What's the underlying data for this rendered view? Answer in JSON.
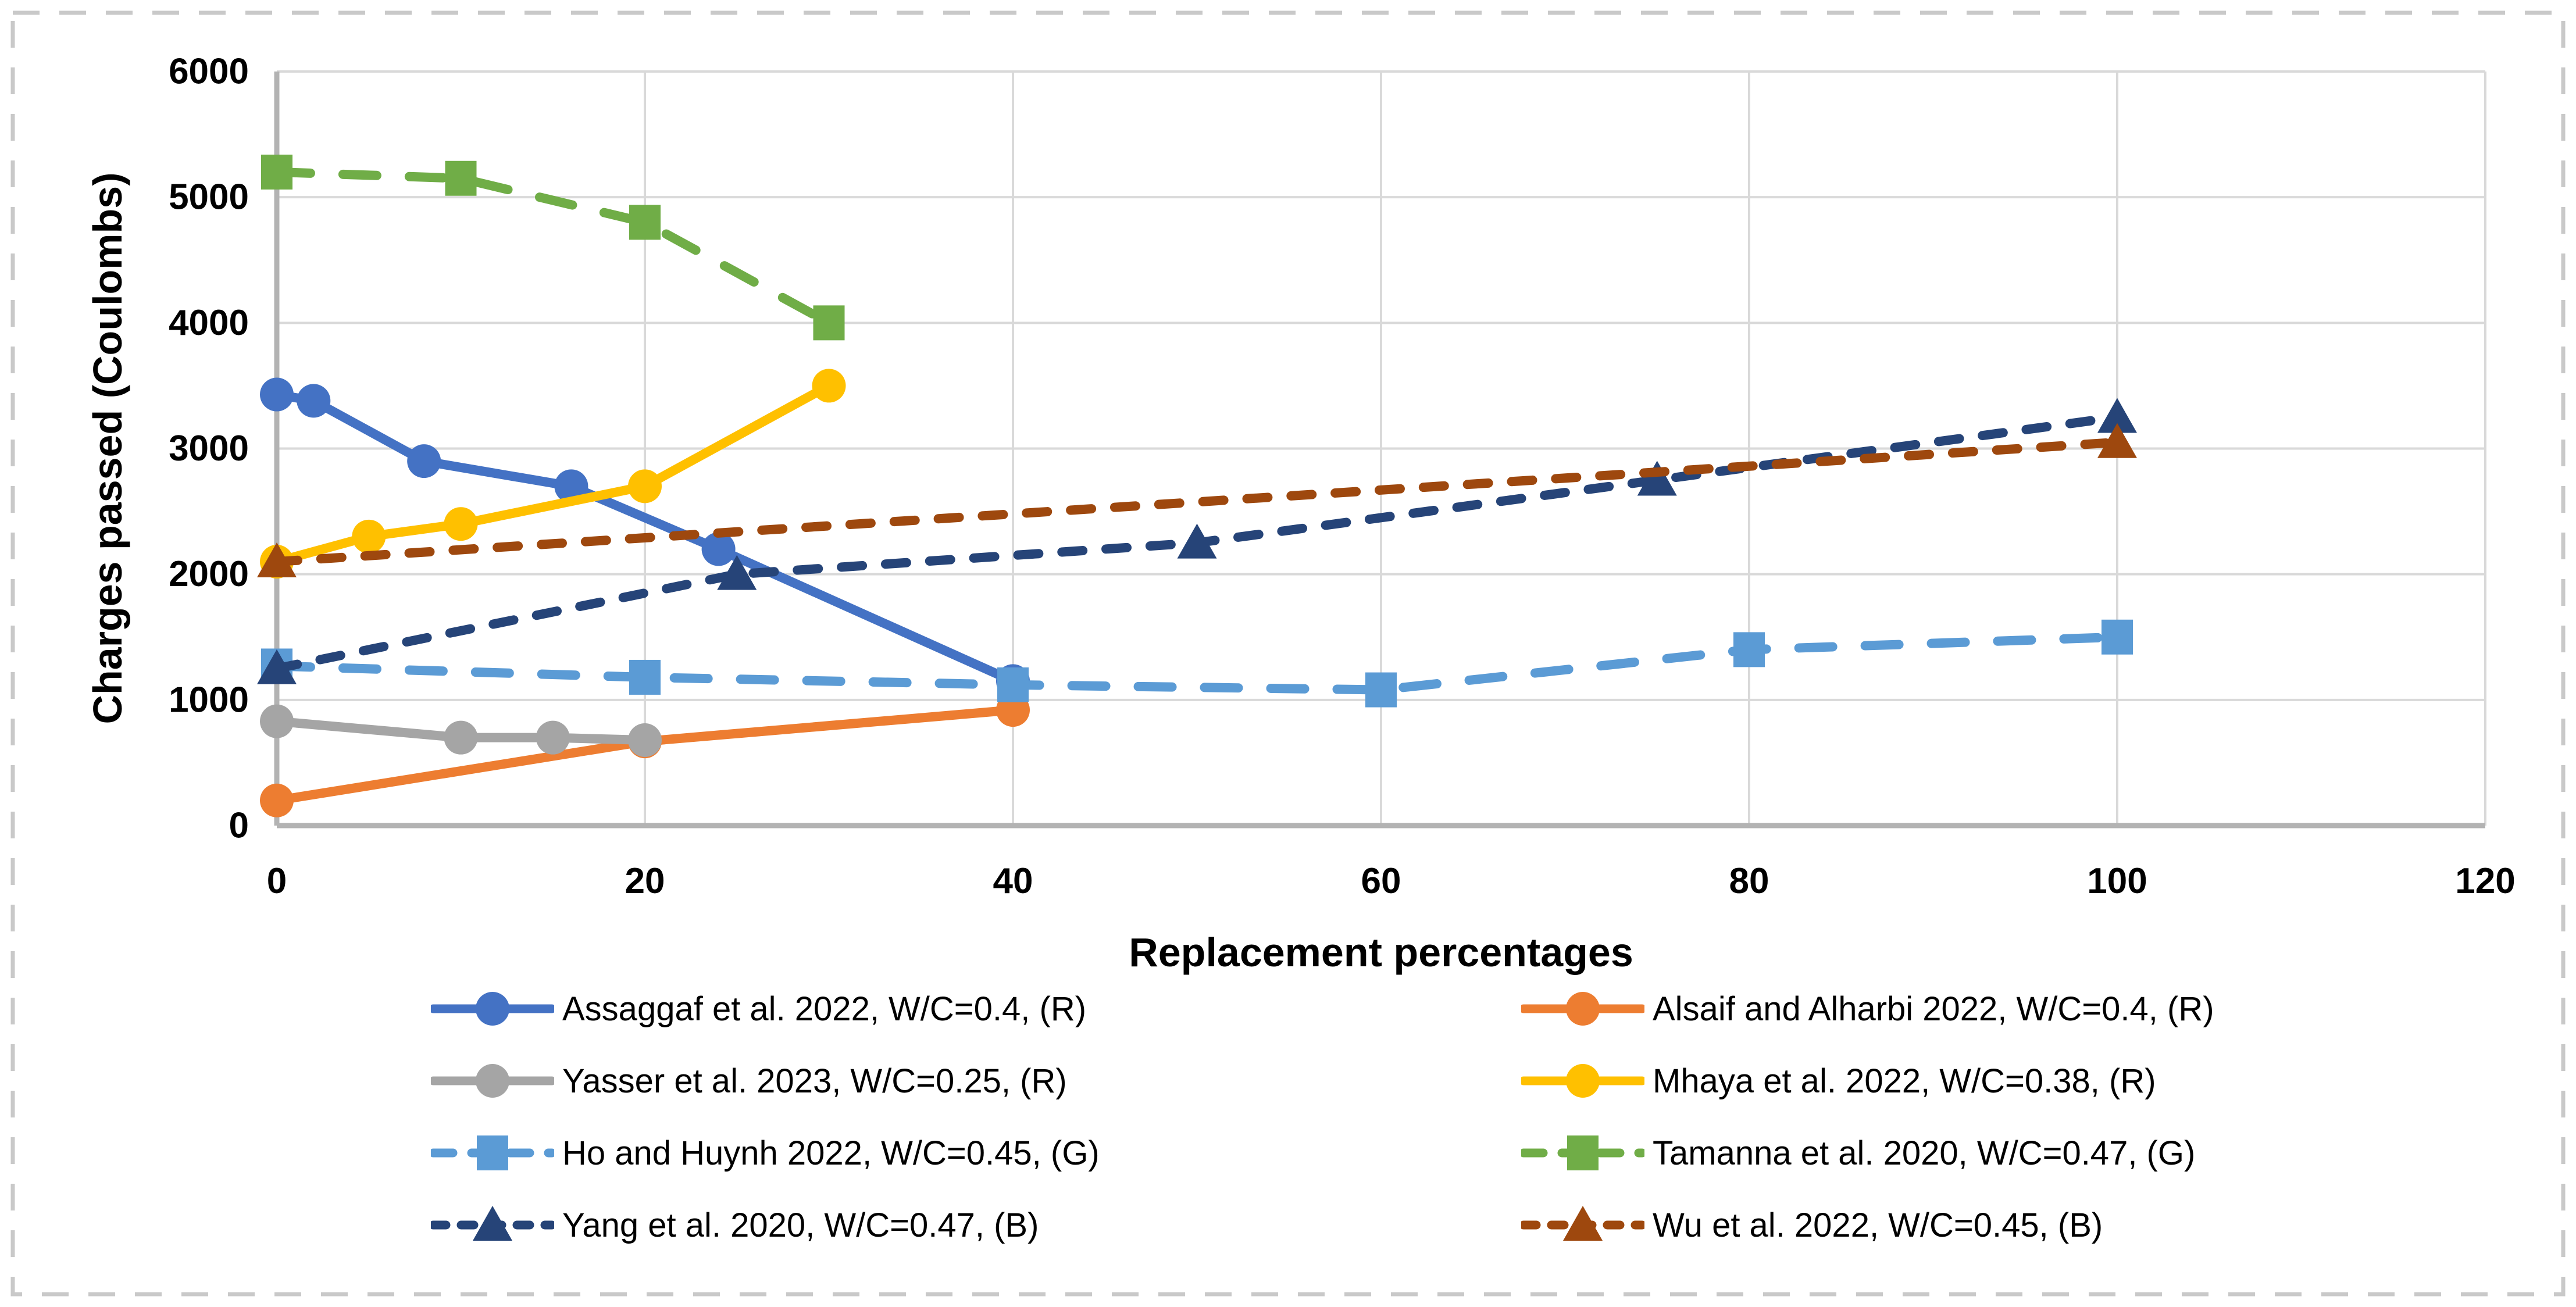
{
  "figure": {
    "background": "#FFFFFF",
    "border_color": "#C9C9C9",
    "gridline_color": "#D9D9D9",
    "axis_line_color": "#B3B3B3",
    "text_color": "#000000"
  },
  "chart_data": {
    "type": "line",
    "title": "",
    "xlabel": "Replacement percentages",
    "ylabel": "Charges passed (Coulombs)",
    "xlim": [
      0,
      120
    ],
    "ylim": [
      0,
      6000
    ],
    "x_ticks": [
      0,
      20,
      40,
      60,
      80,
      100,
      120
    ],
    "y_ticks": [
      0,
      1000,
      2000,
      3000,
      4000,
      5000,
      6000
    ],
    "grid": true,
    "legend_position": "bottom, 2 columns x 4 rows",
    "series": [
      {
        "name": "Assaggaf et al. 2022, W/C=0.4, (R)",
        "color": "#4472C4",
        "line_style": "solid",
        "marker": "circle",
        "points": [
          [
            0,
            3430
          ],
          [
            2,
            3380
          ],
          [
            8,
            2900
          ],
          [
            16,
            2700
          ],
          [
            24,
            2200
          ],
          [
            40,
            1150
          ]
        ]
      },
      {
        "name": "Alsaif and Alharbi 2022, W/C=0.4, (R)",
        "color": "#ED7D31",
        "line_style": "solid",
        "marker": "circle",
        "points": [
          [
            0,
            200
          ],
          [
            20,
            670
          ],
          [
            40,
            920
          ]
        ]
      },
      {
        "name": "Yasser et al. 2023, W/C=0.25, (R)",
        "color": "#A5A5A5",
        "line_style": "solid",
        "marker": "circle",
        "points": [
          [
            0,
            830
          ],
          [
            10,
            700
          ],
          [
            15,
            700
          ],
          [
            20,
            680
          ]
        ]
      },
      {
        "name": "Mhaya et al. 2022, W/C=0.38, (R)",
        "color": "#FFC000",
        "line_style": "solid",
        "marker": "circle",
        "points": [
          [
            0,
            2100
          ],
          [
            5,
            2300
          ],
          [
            10,
            2400
          ],
          [
            20,
            2700
          ],
          [
            30,
            3500
          ]
        ]
      },
      {
        "name": "Ho and Huynh 2022, W/C=0.45, (G)",
        "color": "#5B9BD5",
        "line_style": "dash-long",
        "marker": "square",
        "points": [
          [
            0,
            1270
          ],
          [
            20,
            1180
          ],
          [
            40,
            1120
          ],
          [
            60,
            1080
          ],
          [
            80,
            1400
          ],
          [
            100,
            1500
          ]
        ]
      },
      {
        "name": "Tamanna et al. 2020, W/C=0.47, (G)",
        "color": "#70AD47",
        "line_style": "dash-long",
        "marker": "square",
        "points": [
          [
            0,
            5200
          ],
          [
            10,
            5150
          ],
          [
            20,
            4800
          ],
          [
            30,
            4000
          ]
        ]
      },
      {
        "name": "Yang et al. 2020, W/C=0.47, (B)",
        "color": "#264478",
        "line_style": "dash-short",
        "marker": "triangle",
        "points": [
          [
            0,
            1250
          ],
          [
            25,
            2000
          ],
          [
            50,
            2250
          ],
          [
            75,
            2750
          ],
          [
            100,
            3250
          ]
        ]
      },
      {
        "name": "Wu et al. 2022, W/C=0.45, (B)",
        "color": "#9E480E",
        "line_style": "dash-short",
        "marker": "triangle",
        "points": [
          [
            0,
            2100
          ],
          [
            100,
            3050
          ]
        ]
      }
    ]
  }
}
